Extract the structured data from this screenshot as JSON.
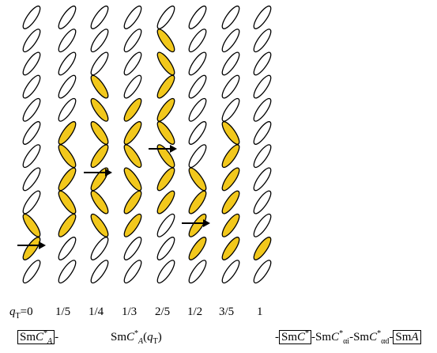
{
  "q_symbol": "q",
  "q_subscript": "T",
  "q_labels": [
    "=0",
    "1/5",
    "1/4",
    "1/3",
    "2/5",
    "1/2",
    "3/5",
    "1"
  ],
  "phase_1": {
    "sm": "Sm",
    "c": "C",
    "star": "*",
    "sub": "A",
    "dash": "-"
  },
  "phase_2": {
    "sm": "Sm",
    "c": "C",
    "star": "*",
    "sub": "A",
    "open": "(",
    "q": "q",
    "q_sub": "T",
    "close": ")"
  },
  "phase_3": {
    "dash1": "-",
    "sm1": "Sm",
    "c1": "C",
    "star1": "*",
    "dash2": "-Sm",
    "c2": "C",
    "star2": "*",
    "sub2": "αi",
    "dash3": "-Sm",
    "c3": "C",
    "star3": "*",
    "sub3": "αd",
    "dash4": "-",
    "sm4": "Sm",
    "a4": "A"
  }
}
